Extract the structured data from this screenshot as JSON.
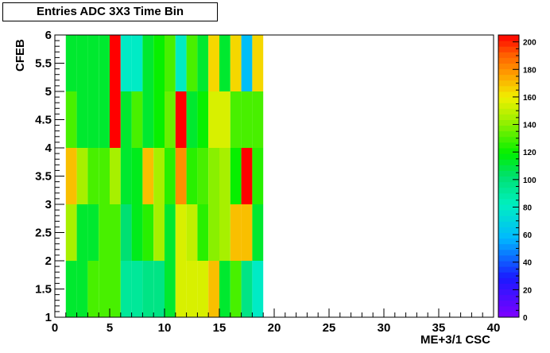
{
  "chart_data": {
    "type": "heatmap",
    "title": "Entries ADC 3X3 Time Bin",
    "xlabel": "ME+3/1 CSC",
    "ylabel": "CFEB",
    "xlim": [
      0,
      40
    ],
    "ylim": [
      1,
      6
    ],
    "x_ticks": [
      "0",
      "5",
      "10",
      "15",
      "20",
      "25",
      "30",
      "35",
      "40"
    ],
    "y_ticks": [
      "1",
      "1.5",
      "2",
      "2.5",
      "3",
      "3.5",
      "4",
      "4.5",
      "5",
      "5.5",
      "6"
    ],
    "z_range": [
      0,
      205
    ],
    "palette_ticks": [
      "0",
      "20",
      "40",
      "60",
      "80",
      "100",
      "120",
      "140",
      "160",
      "180",
      "200"
    ],
    "x_bins": [
      1,
      2,
      3,
      4,
      5,
      6,
      7,
      8,
      9,
      10,
      11,
      12,
      13,
      14,
      15,
      16,
      17,
      18
    ],
    "y_bins": [
      "1-2",
      "2-3",
      "3-4",
      "4-5",
      "5-6"
    ],
    "z": [
      [
        112,
        112,
        130,
        130,
        130,
        92,
        92,
        97,
        97,
        112,
        155,
        155,
        155,
        170,
        112,
        130,
        97,
        80
      ],
      [
        145,
        112,
        112,
        130,
        130,
        102,
        115,
        125,
        145,
        112,
        155,
        150,
        125,
        140,
        145,
        170,
        170,
        112
      ],
      [
        170,
        145,
        130,
        130,
        145,
        112,
        115,
        170,
        145,
        125,
        180,
        125,
        130,
        140,
        145,
        120,
        205,
        125
      ],
      [
        130,
        112,
        112,
        112,
        205,
        112,
        130,
        112,
        120,
        135,
        205,
        112,
        120,
        155,
        155,
        130,
        130,
        130
      ],
      [
        112,
        112,
        112,
        112,
        205,
        80,
        80,
        112,
        120,
        130,
        80,
        130,
        112,
        165,
        112,
        165,
        60,
        165
      ]
    ],
    "colorbar": true,
    "grid": false,
    "legend": "none"
  }
}
